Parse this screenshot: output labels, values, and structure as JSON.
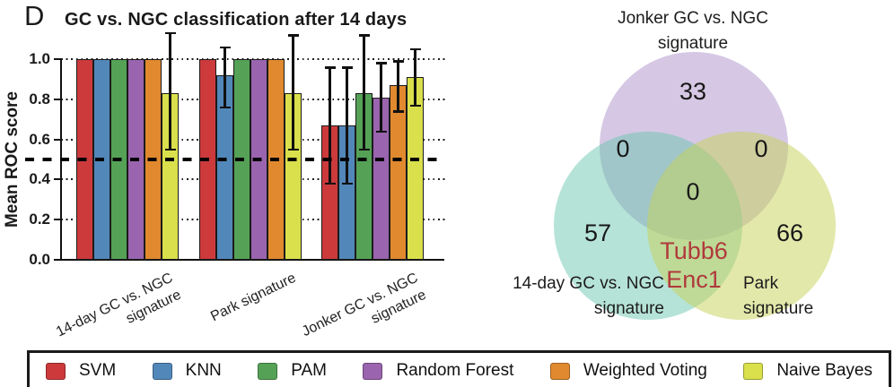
{
  "panel_label": "D",
  "chart_data": {
    "type": "bar",
    "title": "GC vs. NGC classification after 14 days",
    "ylabel": "Mean ROC score",
    "ylim": [
      0.0,
      1.0
    ],
    "yticks": [
      0.0,
      0.2,
      0.4,
      0.6,
      0.8,
      1.0
    ],
    "gridlines": "dotted",
    "reference_line": 0.5,
    "categories": [
      "14-day GC vs. NGC signature",
      "Park signature",
      "Jonker GC vs. NGC signature"
    ],
    "category_label_lines": [
      [
        "14-day GC vs. NGC",
        "signature"
      ],
      [
        "Park signature"
      ],
      [
        "Jonker GC vs. NGC",
        "signature"
      ]
    ],
    "series": [
      {
        "name": "SVM",
        "color": "#cc3a3c",
        "values": [
          1.0,
          1.0,
          0.67
        ],
        "err_low": [
          null,
          null,
          0.38
        ],
        "err_high": [
          null,
          null,
          0.96
        ]
      },
      {
        "name": "KNN",
        "color": "#5287b9",
        "values": [
          1.0,
          0.92,
          0.67
        ],
        "err_low": [
          null,
          0.76,
          0.38
        ],
        "err_high": [
          null,
          1.06,
          0.96
        ]
      },
      {
        "name": "PAM",
        "color": "#55a257",
        "values": [
          1.0,
          1.0,
          0.83
        ],
        "err_low": [
          null,
          null,
          0.55
        ],
        "err_high": [
          null,
          null,
          1.12
        ]
      },
      {
        "name": "Random Forest",
        "color": "#9a64ae",
        "values": [
          1.0,
          1.0,
          0.81
        ],
        "err_low": [
          null,
          null,
          0.64
        ],
        "err_high": [
          null,
          null,
          0.98
        ]
      },
      {
        "name": "Weighted Voting",
        "color": "#e0892e",
        "values": [
          1.0,
          1.0,
          0.87
        ],
        "err_low": [
          null,
          null,
          0.74
        ],
        "err_high": [
          null,
          null,
          0.99
        ]
      },
      {
        "name": "Naive Bayes",
        "color": "#d9e04b",
        "values": [
          0.83,
          0.83,
          0.91
        ],
        "err_low": [
          0.55,
          0.55,
          0.77
        ],
        "err_high": [
          1.13,
          1.12,
          1.05
        ]
      }
    ]
  },
  "venn": {
    "labels": {
      "top": [
        "Jonker GC vs. NGC",
        "signature"
      ],
      "bottom_left": [
        "14-day GC vs. NGC",
        "signature"
      ],
      "bottom_right": [
        "Park",
        "signature"
      ]
    },
    "counts": {
      "jonker_only": "33",
      "day14_only": "57",
      "park_only": "66",
      "jonker_day14": "0",
      "jonker_park": "0",
      "all_three": "0"
    },
    "day14_park_genes": [
      "Tubb6",
      "Enc1"
    ],
    "gene_color": "#b0393c",
    "circle_colors": {
      "jonker": "rgba(163,133,196,0.45)",
      "day14": "rgba(100,196,170,0.47)",
      "park": "rgba(198,210,85,0.5)"
    }
  },
  "legend": {
    "items": [
      {
        "label": "SVM",
        "color": "#cc3a3c"
      },
      {
        "label": "KNN",
        "color": "#5287b9"
      },
      {
        "label": "PAM",
        "color": "#55a257"
      },
      {
        "label": "Random Forest",
        "color": "#9a64ae"
      },
      {
        "label": "Weighted Voting",
        "color": "#e0892e"
      },
      {
        "label": "Naive Bayes",
        "color": "#d9e04b"
      }
    ]
  }
}
